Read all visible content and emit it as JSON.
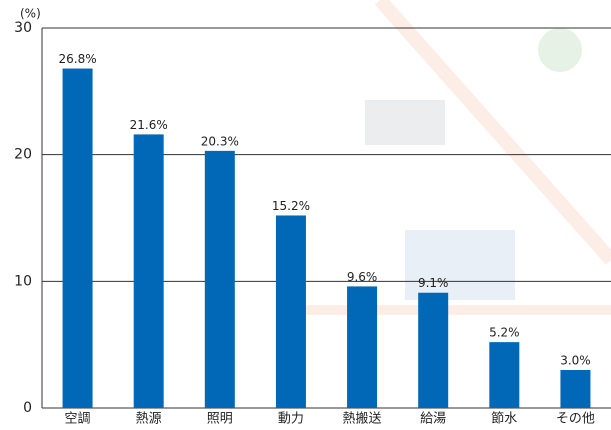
{
  "chart_data": {
    "type": "bar",
    "y_label": "(%)",
    "categories": [
      "空調",
      "熱源",
      "照明",
      "動力",
      "熱搬送",
      "給湯",
      "節水",
      "その他"
    ],
    "values": [
      26.8,
      21.6,
      20.3,
      15.2,
      9.6,
      9.1,
      5.2,
      3.0
    ],
    "value_labels": [
      "26.8%",
      "21.6%",
      "20.3%",
      "15.2%",
      "9.6%",
      "9.1%",
      "5.2%",
      "3.0%"
    ],
    "color": "#0068b7",
    "ylim": [
      0,
      30
    ],
    "yticks": [
      0,
      10,
      20,
      30
    ],
    "grid": true
  }
}
